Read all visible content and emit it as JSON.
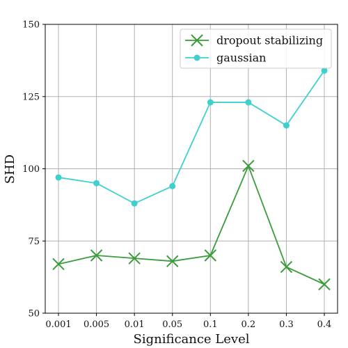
{
  "chart_data": {
    "type": "line",
    "title": "",
    "xlabel": "Significance Level",
    "ylabel": "SHD",
    "categories": [
      "0.001",
      "0.005",
      "0.01",
      "0.05",
      "0.1",
      "0.2",
      "0.3",
      "0.4"
    ],
    "ylim": [
      50,
      150
    ],
    "yticks": [
      50,
      75,
      100,
      125,
      150
    ],
    "grid": true,
    "legend_position": "top-right",
    "series": [
      {
        "name": "dropout stabilizing",
        "values": [
          67,
          70,
          69,
          68,
          70,
          101,
          66,
          60
        ],
        "color": "#3a9c3a",
        "marker": "x"
      },
      {
        "name": "gaussian",
        "values": [
          97,
          95,
          88,
          94,
          123,
          123,
          115,
          134
        ],
        "color": "#3ecfcf",
        "marker": "circle"
      }
    ]
  }
}
